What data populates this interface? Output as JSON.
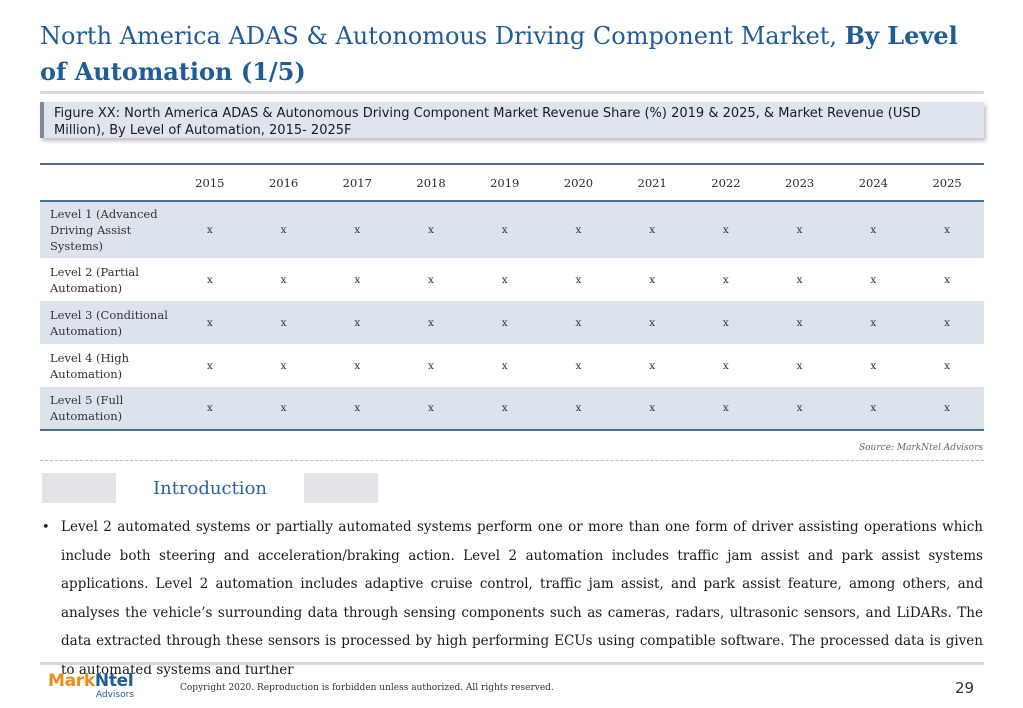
{
  "header": {
    "title_plain": "North America ADAS & Autonomous Driving Component Market, ",
    "title_bold": "By Level of Automation (1/5)"
  },
  "figure": {
    "caption": "Figure XX: North America ADAS & Autonomous Driving Component Market Revenue Share (%) 2019 & 2025, & Market Revenue (USD Million), By Level of Automation, 2015- 2025F"
  },
  "table": {
    "corner": "",
    "years": [
      "2015",
      "2016",
      "2017",
      "2018",
      "2019",
      "2020",
      "2021",
      "2022",
      "2023",
      "2024",
      "2025"
    ],
    "rows": [
      {
        "label": "Level 1 (Advanced Driving Assist Systems)",
        "values": [
          "x",
          "x",
          "x",
          "x",
          "x",
          "x",
          "x",
          "x",
          "x",
          "x",
          "x"
        ]
      },
      {
        "label": "Level 2 (Partial Automation)",
        "values": [
          "x",
          "x",
          "x",
          "x",
          "x",
          "x",
          "x",
          "x",
          "x",
          "x",
          "x"
        ]
      },
      {
        "label": "Level 3 (Conditional Automation)",
        "values": [
          "x",
          "x",
          "x",
          "x",
          "x",
          "x",
          "x",
          "x",
          "x",
          "x",
          "x"
        ]
      },
      {
        "label": "Level 4 (High Automation)",
        "values": [
          "x",
          "x",
          "x",
          "x",
          "x",
          "x",
          "x",
          "x",
          "x",
          "x",
          "x"
        ]
      },
      {
        "label": "Level 5 (Full Automation)",
        "values": [
          "x",
          "x",
          "x",
          "x",
          "x",
          "x",
          "x",
          "x",
          "x",
          "x",
          "x"
        ]
      }
    ],
    "source": "Source: MarkNtel Advisors"
  },
  "intro": {
    "title": "Introduction",
    "bullet": "•",
    "text": "Level 2 automated systems or partially automated systems perform one or more than one form of driver assisting operations which include both steering and acceleration/braking action. Level 2 automation includes traffic jam assist and park assist systems applications. Level 2 automation includes adaptive cruise control, traffic jam assist, and park assist feature, among others, and analyses the vehicle’s surrounding data through sensing components such as cameras, radars, ultrasonic sensors, and LiDARs. The data extracted through these sensors is processed by high performing ECUs using compatible software. The processed data is given to automated systems and further"
  },
  "footer": {
    "logo_mark": "Mark",
    "logo_ntel": "Ntel",
    "logo_sub": "Advisors",
    "copyright": "Copyright 2020. Reproduction is forbidden unless authorized. All rights reserved.",
    "page_number": "29"
  },
  "colors": {
    "title_blue": "#1f5c99",
    "table_rule": "#4a6f95",
    "row_band": "#dce3ed",
    "caption_bg": "#dfe5ee",
    "logo_orange": "#f28a1b",
    "intro_blue": "#2a62a6"
  }
}
